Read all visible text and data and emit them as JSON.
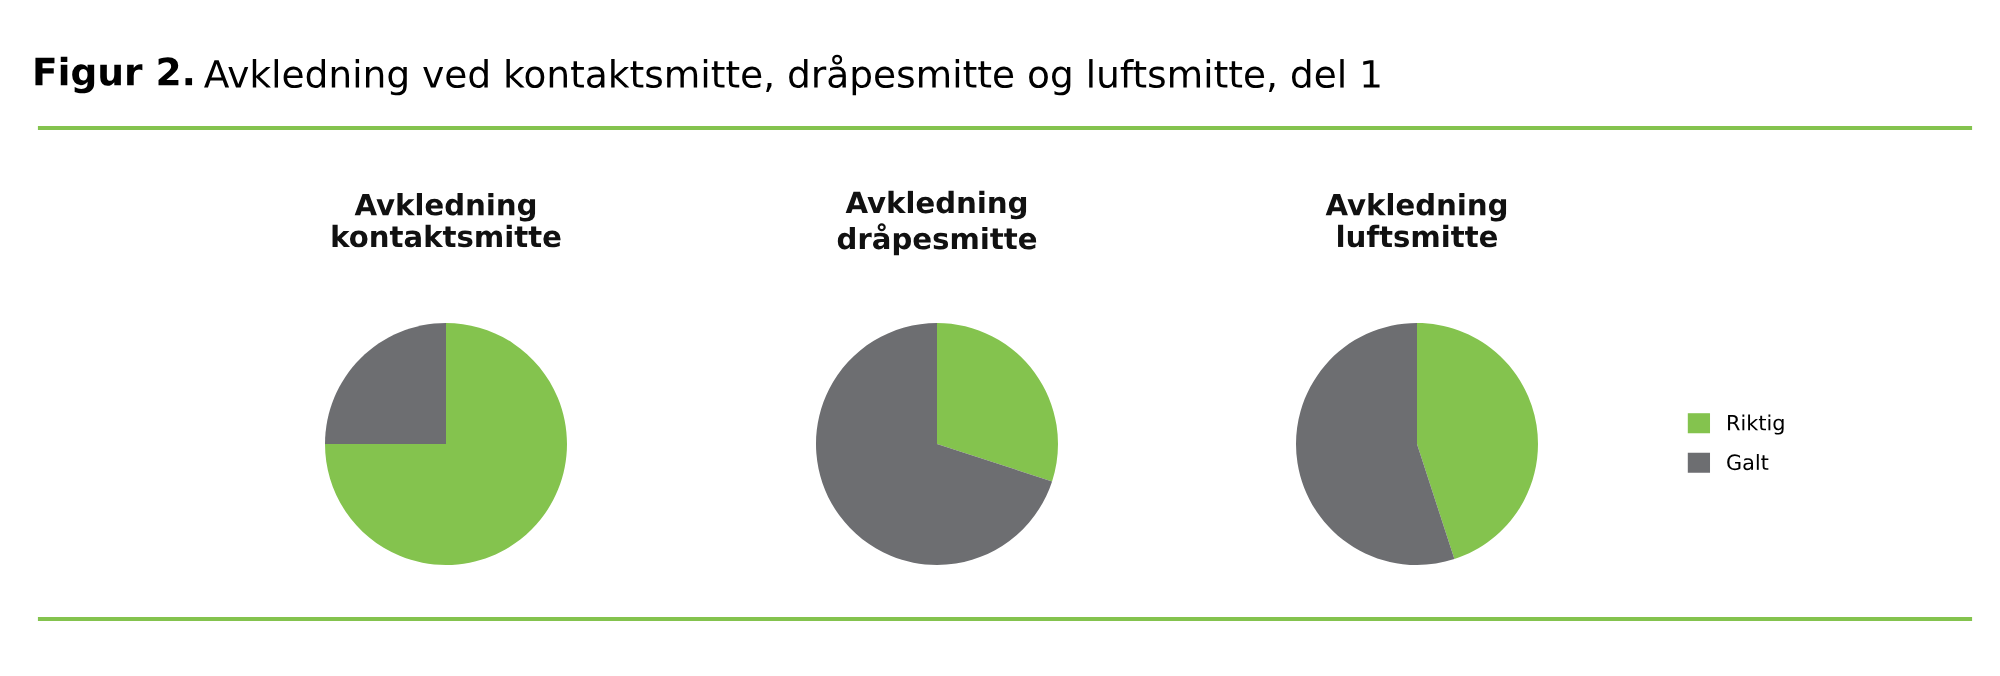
{
  "chart_data": [
    {
      "type": "pie",
      "title": "Avkledning\nkontaktsmitte",
      "categories": [
        null,
        null
      ],
      "values": [
        75,
        25
      ],
      "colors": [
        "#84c34e",
        "#6d6e71"
      ],
      "annotations": [
        "Figur 2. Avkledning ved kontaktsmitte, dråpesmitte og luftsmitte, del 1"
      ]
    },
    {
      "type": "pie",
      "title": "Avkledning\ndråpesmitte",
      "categories": [
        null,
        null
      ],
      "values": [
        30,
        70
      ],
      "colors": [
        "#84c34e",
        "#6d6e71"
      ]
    },
    {
      "type": "pie",
      "title": "Avkledning\nluftsmitte",
      "categories": [
        "Riktig",
        "Galt"
      ],
      "values": [
        45,
        55
      ],
      "colors": [
        "#84c34e",
        "#6d6e71"
      ],
      "legend": "right"
    }
  ]
}
